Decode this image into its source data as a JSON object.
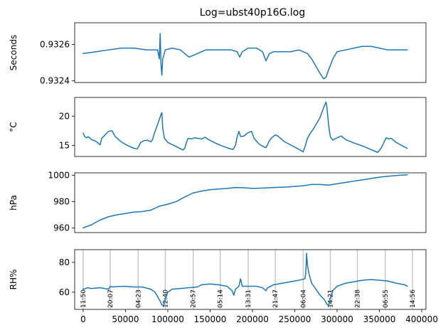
{
  "title": "Log=ubst40p16G.log",
  "series_color": "#1f77b4",
  "marker_color": "#c8c8c8",
  "chart_data": [
    {
      "type": "line",
      "ylabel": "Seconds",
      "xlim": [
        -10000,
        405000
      ],
      "ylim": [
        0.93239,
        0.93272
      ],
      "yticks": [
        0.9324,
        0.9326
      ],
      "yticklabels": [
        "0.9324",
        "0.9326"
      ],
      "show_xticks": false,
      "points": [
        [
          0,
          0.93255
        ],
        [
          15000,
          0.93256
        ],
        [
          30000,
          0.93257
        ],
        [
          45000,
          0.93258
        ],
        [
          60000,
          0.93258
        ],
        [
          75000,
          0.93257
        ],
        [
          88000,
          0.93257
        ],
        [
          90000,
          0.93252
        ],
        [
          91000,
          0.93266
        ],
        [
          92000,
          0.93249
        ],
        [
          93000,
          0.93243
        ],
        [
          94000,
          0.93252
        ],
        [
          97000,
          0.93257
        ],
        [
          105000,
          0.93258
        ],
        [
          115000,
          0.93257
        ],
        [
          125000,
          0.93253
        ],
        [
          135000,
          0.93255
        ],
        [
          145000,
          0.93257
        ],
        [
          155000,
          0.93257
        ],
        [
          165000,
          0.93257
        ],
        [
          175000,
          0.93257
        ],
        [
          182000,
          0.93256
        ],
        [
          185000,
          0.93253
        ],
        [
          188000,
          0.93256
        ],
        [
          195000,
          0.93258
        ],
        [
          205000,
          0.93258
        ],
        [
          212000,
          0.93256
        ],
        [
          216000,
          0.93251
        ],
        [
          220000,
          0.93255
        ],
        [
          225000,
          0.93256
        ],
        [
          235000,
          0.93256
        ],
        [
          245000,
          0.93256
        ],
        [
          255000,
          0.93257
        ],
        [
          265000,
          0.93255
        ],
        [
          270000,
          0.93252
        ],
        [
          275000,
          0.93248
        ],
        [
          280000,
          0.93244
        ],
        [
          284000,
          0.93241
        ],
        [
          287000,
          0.93242
        ],
        [
          290000,
          0.93246
        ],
        [
          295000,
          0.93252
        ],
        [
          300000,
          0.93256
        ],
        [
          310000,
          0.93257
        ],
        [
          320000,
          0.93258
        ],
        [
          330000,
          0.93259
        ],
        [
          340000,
          0.93259
        ],
        [
          350000,
          0.93258
        ],
        [
          360000,
          0.93257
        ],
        [
          370000,
          0.93257
        ],
        [
          383000,
          0.93257
        ]
      ]
    },
    {
      "type": "line",
      "ylabel": "°C",
      "xlim": [
        -10000,
        405000
      ],
      "ylim": [
        13.1,
        23.2
      ],
      "yticks": [
        15,
        20
      ],
      "yticklabels": [
        "15",
        "20"
      ],
      "show_xticks": false,
      "points": [
        [
          0,
          17.1
        ],
        [
          2000,
          16.5
        ],
        [
          4000,
          16.3
        ],
        [
          6000,
          16.5
        ],
        [
          10000,
          16.0
        ],
        [
          15000,
          15.7
        ],
        [
          20000,
          15.1
        ],
        [
          22000,
          16.2
        ],
        [
          26000,
          16.8
        ],
        [
          30000,
          17.4
        ],
        [
          34000,
          17.5
        ],
        [
          38000,
          16.5
        ],
        [
          45000,
          15.6
        ],
        [
          52000,
          15.0
        ],
        [
          60000,
          14.5
        ],
        [
          64000,
          14.4
        ],
        [
          68000,
          15.5
        ],
        [
          72000,
          15.8
        ],
        [
          76000,
          15.9
        ],
        [
          80000,
          15.6
        ],
        [
          82000,
          16.0
        ],
        [
          84000,
          17.0
        ],
        [
          86000,
          17.8
        ],
        [
          89000,
          19.0
        ],
        [
          92000,
          20.3
        ],
        [
          93000,
          20.6
        ],
        [
          94000,
          18.0
        ],
        [
          96000,
          16.2
        ],
        [
          100000,
          15.5
        ],
        [
          110000,
          14.8
        ],
        [
          118000,
          14.2
        ],
        [
          120000,
          14.5
        ],
        [
          122000,
          15.5
        ],
        [
          124000,
          16.2
        ],
        [
          128000,
          16.1
        ],
        [
          132000,
          16.3
        ],
        [
          140000,
          16.1
        ],
        [
          144000,
          16.4
        ],
        [
          148000,
          16.0
        ],
        [
          156000,
          15.4
        ],
        [
          164000,
          14.9
        ],
        [
          172000,
          14.5
        ],
        [
          177000,
          14.3
        ],
        [
          180000,
          15.0
        ],
        [
          182000,
          16.5
        ],
        [
          184000,
          17.4
        ],
        [
          186000,
          16.5
        ],
        [
          190000,
          16.6
        ],
        [
          195000,
          17.2
        ],
        [
          199000,
          17.4
        ],
        [
          202000,
          16.2
        ],
        [
          208000,
          15.2
        ],
        [
          213000,
          14.8
        ],
        [
          216000,
          14.6
        ],
        [
          219000,
          15.5
        ],
        [
          222000,
          16.2
        ],
        [
          227000,
          16.8
        ],
        [
          230000,
          16.6
        ],
        [
          238000,
          15.6
        ],
        [
          246000,
          15.0
        ],
        [
          254000,
          14.4
        ],
        [
          260000,
          13.9
        ],
        [
          263000,
          15.2
        ],
        [
          265000,
          16.2
        ],
        [
          268000,
          17.0
        ],
        [
          272000,
          17.8
        ],
        [
          276000,
          18.8
        ],
        [
          280000,
          19.8
        ],
        [
          283000,
          21.0
        ],
        [
          285000,
          21.8
        ],
        [
          287000,
          22.4
        ],
        [
          288000,
          21.5
        ],
        [
          290000,
          18.5
        ],
        [
          292000,
          16.5
        ],
        [
          295000,
          15.9
        ],
        [
          300000,
          16.3
        ],
        [
          305000,
          16.6
        ],
        [
          310000,
          16.0
        ],
        [
          320000,
          15.4
        ],
        [
          330000,
          14.9
        ],
        [
          340000,
          14.3
        ],
        [
          348000,
          13.8
        ],
        [
          352000,
          14.5
        ],
        [
          355000,
          15.4
        ],
        [
          358000,
          16.3
        ],
        [
          361000,
          16.1
        ],
        [
          364000,
          16.2
        ],
        [
          370000,
          15.5
        ],
        [
          376000,
          15.0
        ],
        [
          383000,
          14.5
        ]
      ]
    },
    {
      "type": "line",
      "ylabel": "hPa",
      "xlim": [
        -10000,
        405000
      ],
      "ylim": [
        956.5,
        1001.8
      ],
      "yticks": [
        960,
        980,
        1000
      ],
      "yticklabels": [
        "960",
        "980",
        "1000"
      ],
      "show_xticks": false,
      "points": [
        [
          0,
          960.0
        ],
        [
          10000,
          962.5
        ],
        [
          20000,
          966.0
        ],
        [
          30000,
          968.5
        ],
        [
          40000,
          970.0
        ],
        [
          50000,
          971.0
        ],
        [
          60000,
          972.0
        ],
        [
          70000,
          972.5
        ],
        [
          80000,
          973.5
        ],
        [
          90000,
          976.5
        ],
        [
          100000,
          978.0
        ],
        [
          110000,
          980.0
        ],
        [
          120000,
          983.5
        ],
        [
          130000,
          986.5
        ],
        [
          140000,
          988.0
        ],
        [
          150000,
          989.0
        ],
        [
          160000,
          989.5
        ],
        [
          170000,
          990.0
        ],
        [
          180000,
          990.7
        ],
        [
          190000,
          990.5
        ],
        [
          200000,
          990.0
        ],
        [
          210000,
          990.2
        ],
        [
          220000,
          990.5
        ],
        [
          230000,
          990.8
        ],
        [
          240000,
          991.0
        ],
        [
          250000,
          991.5
        ],
        [
          260000,
          992.0
        ],
        [
          270000,
          993.0
        ],
        [
          280000,
          993.0
        ],
        [
          290000,
          992.5
        ],
        [
          300000,
          993.5
        ],
        [
          310000,
          994.5
        ],
        [
          320000,
          995.5
        ],
        [
          330000,
          996.5
        ],
        [
          340000,
          997.5
        ],
        [
          350000,
          998.5
        ],
        [
          360000,
          999.2
        ],
        [
          370000,
          999.8
        ],
        [
          383000,
          1000.3
        ]
      ]
    },
    {
      "type": "line",
      "ylabel": "RH%",
      "xlim": [
        -10000,
        405000
      ],
      "ylim": [
        48.5,
        88.5
      ],
      "yticks": [
        60,
        80
      ],
      "yticklabels": [
        "60",
        "80"
      ],
      "show_xticks": true,
      "xticks": [
        0,
        50000,
        100000,
        150000,
        200000,
        250000,
        300000,
        350000,
        400000
      ],
      "xticklabels": [
        "0",
        "50000",
        "100000",
        "150000",
        "200000",
        "250000",
        "300000",
        "350000",
        "400000"
      ],
      "time_markers": [
        {
          "x": 0,
          "label": "11:50"
        },
        {
          "x": 32000,
          "label": "20:07"
        },
        {
          "x": 65000,
          "label": "04:23"
        },
        {
          "x": 97000,
          "label": "12:40"
        },
        {
          "x": 130000,
          "label": "20:57"
        },
        {
          "x": 162000,
          "label": "05:14"
        },
        {
          "x": 195000,
          "label": "13:31"
        },
        {
          "x": 227000,
          "label": "21:47"
        },
        {
          "x": 260000,
          "label": "06:04"
        },
        {
          "x": 292000,
          "label": "14:21"
        },
        {
          "x": 324000,
          "label": "22:38"
        },
        {
          "x": 357000,
          "label": "06:55"
        },
        {
          "x": 389000,
          "label": "14:56"
        }
      ],
      "points": [
        [
          0,
          62.0
        ],
        [
          5000,
          63.0
        ],
        [
          10000,
          62.5
        ],
        [
          20000,
          63.0
        ],
        [
          30000,
          62.0
        ],
        [
          32000,
          64.0
        ],
        [
          34000,
          63.5
        ],
        [
          40000,
          63.8
        ],
        [
          50000,
          64.0
        ],
        [
          60000,
          63.5
        ],
        [
          70000,
          63.5
        ],
        [
          80000,
          62.0
        ],
        [
          85000,
          60.0
        ],
        [
          88000,
          57.0
        ],
        [
          91000,
          54.0
        ],
        [
          93000,
          51.5
        ],
        [
          95000,
          51.0
        ],
        [
          97000,
          55.0
        ],
        [
          100000,
          60.0
        ],
        [
          105000,
          62.0
        ],
        [
          115000,
          62.5
        ],
        [
          125000,
          63.0
        ],
        [
          135000,
          63.5
        ],
        [
          140000,
          65.0
        ],
        [
          150000,
          65.5
        ],
        [
          160000,
          65.0
        ],
        [
          170000,
          64.0
        ],
        [
          176000,
          61.0
        ],
        [
          178000,
          58.0
        ],
        [
          180000,
          62.0
        ],
        [
          184000,
          64.0
        ],
        [
          186000,
          69.0
        ],
        [
          188000,
          64.0
        ],
        [
          195000,
          64.0
        ],
        [
          205000,
          64.0
        ],
        [
          212000,
          63.0
        ],
        [
          216000,
          61.0
        ],
        [
          218000,
          63.0
        ],
        [
          225000,
          65.0
        ],
        [
          235000,
          66.0
        ],
        [
          245000,
          67.0
        ],
        [
          255000,
          68.0
        ],
        [
          262000,
          69.0
        ],
        [
          263000,
          73.0
        ],
        [
          264000,
          86.0
        ],
        [
          265000,
          78.0
        ],
        [
          267000,
          72.0
        ],
        [
          270000,
          66.0
        ],
        [
          275000,
          62.0
        ],
        [
          280000,
          58.0
        ],
        [
          285000,
          55.0
        ],
        [
          288000,
          52.0
        ],
        [
          290000,
          51.0
        ],
        [
          292000,
          56.0
        ],
        [
          295000,
          61.0
        ],
        [
          300000,
          64.0
        ],
        [
          310000,
          66.0
        ],
        [
          320000,
          67.0
        ],
        [
          330000,
          68.0
        ],
        [
          340000,
          68.5
        ],
        [
          350000,
          68.0
        ],
        [
          360000,
          67.5
        ],
        [
          370000,
          66.0
        ],
        [
          380000,
          65.0
        ],
        [
          383000,
          64.0
        ]
      ]
    }
  ]
}
